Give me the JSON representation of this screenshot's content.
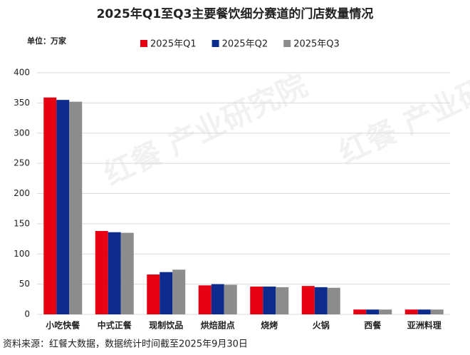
{
  "chart_data": {
    "type": "bar",
    "title": "2025年Q1至Q3主要餐饮细分赛道的门店数量情况",
    "unit": "单位：万家",
    "source": "资料来源：红餐大数据，数据统计时间截至2025年9月30日",
    "watermark": "红餐 产业研究院",
    "categories": [
      "小吃快餐",
      "中式正餐",
      "现制饮品",
      "烘焙甜点",
      "烧烤",
      "火锅",
      "西餐",
      "亚洲料理"
    ],
    "series": [
      {
        "name": "2025年Q1",
        "color": "#e60012",
        "values": [
          359,
          138,
          66,
          48,
          46,
          47,
          8,
          8
        ]
      },
      {
        "name": "2025年Q2",
        "color": "#0d2b8c",
        "values": [
          355,
          136,
          70,
          50,
          46,
          45,
          8,
          8
        ]
      },
      {
        "name": "2025年Q3",
        "color": "#8c8c8c",
        "values": [
          352,
          135,
          74,
          49,
          45,
          44,
          8,
          8
        ]
      }
    ],
    "ylim": [
      0,
      400
    ],
    "yticks": [
      0,
      50,
      100,
      150,
      200,
      250,
      300,
      350,
      400
    ],
    "grid": true
  }
}
